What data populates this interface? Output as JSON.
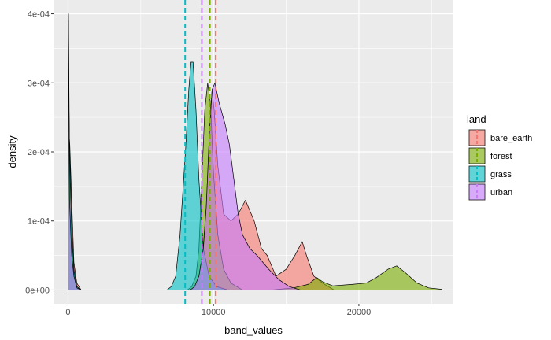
{
  "chart_data": {
    "type": "area",
    "xlabel": "band_values",
    "ylabel": "density",
    "xlim": [
      -1000,
      26500
    ],
    "ylim": [
      -2e-05,
      0.00042
    ],
    "x_ticks": [
      0,
      10000,
      20000
    ],
    "x_tick_labels": [
      "0",
      "10000",
      "20000"
    ],
    "y_ticks": [
      0,
      0.0001,
      0.0002,
      0.0003,
      0.0004
    ],
    "y_tick_labels": [
      "0e+00",
      "1e-04",
      "2e-04",
      "3e-04",
      "4e-04"
    ],
    "grid": true,
    "legend": {
      "title": "land",
      "position": "right"
    },
    "series": [
      {
        "name": "bare_earth",
        "color": "#F8766D",
        "mean_line": 10150,
        "points": [
          [
            0,
            0
          ],
          [
            30,
            0.00024
          ],
          [
            120,
            0.00021
          ],
          [
            250,
            0.00013
          ],
          [
            400,
            4e-05
          ],
          [
            600,
            1e-05
          ],
          [
            900,
            0
          ],
          [
            8500,
            0
          ],
          [
            8900,
            1e-05
          ],
          [
            9200,
            4e-05
          ],
          [
            9500,
            0.00012
          ],
          [
            9750,
            0.00024
          ],
          [
            9900,
            0.00029
          ],
          [
            10050,
            0.00026
          ],
          [
            10300,
            0.00018
          ],
          [
            10700,
            0.00011
          ],
          [
            11200,
            0.0001
          ],
          [
            11700,
            0.00011
          ],
          [
            12200,
            0.00013
          ],
          [
            12800,
            0.0001
          ],
          [
            13300,
            6e-05
          ],
          [
            13700,
            5e-05
          ],
          [
            14300,
            2e-05
          ],
          [
            15000,
            3e-05
          ],
          [
            15600,
            5e-05
          ],
          [
            16100,
            7e-05
          ],
          [
            16400,
            5e-05
          ],
          [
            16900,
            2e-05
          ],
          [
            17500,
            1e-05
          ],
          [
            18300,
            0
          ],
          [
            19000,
            0
          ]
        ]
      },
      {
        "name": "forest",
        "color": "#7CAE00",
        "mean_line": 9750,
        "points": [
          [
            0,
            0
          ],
          [
            30,
            0.0004
          ],
          [
            100,
            0.00019
          ],
          [
            250,
            8e-05
          ],
          [
            400,
            2.5e-05
          ],
          [
            600,
            5e-06
          ],
          [
            900,
            0
          ],
          [
            8200,
            0
          ],
          [
            8500,
            5e-06
          ],
          [
            8800,
            2e-05
          ],
          [
            9000,
            6e-05
          ],
          [
            9200,
            0.00016
          ],
          [
            9400,
            0.00026
          ],
          [
            9600,
            0.0003
          ],
          [
            9800,
            0.00027
          ],
          [
            10000,
            0.00017
          ],
          [
            10300,
            8e-05
          ],
          [
            10700,
            3e-05
          ],
          [
            11200,
            1e-05
          ],
          [
            12000,
            0
          ],
          [
            14000,
            0
          ],
          [
            15500,
            3e-06
          ],
          [
            16500,
            8e-06
          ],
          [
            17100,
            1.8e-05
          ],
          [
            17500,
            1.2e-05
          ],
          [
            18200,
            6e-06
          ],
          [
            19500,
            8e-06
          ],
          [
            20500,
            1e-05
          ],
          [
            21200,
            1.8e-05
          ],
          [
            22000,
            3e-05
          ],
          [
            22600,
            3.5e-05
          ],
          [
            23200,
            2.5e-05
          ],
          [
            24000,
            1e-05
          ],
          [
            24800,
            3e-06
          ],
          [
            25700,
            1e-06
          ],
          [
            25700,
            0
          ]
        ]
      },
      {
        "name": "grass",
        "color": "#00BFC4",
        "mean_line": 8050,
        "points": [
          [
            0,
            0
          ],
          [
            30,
            0.00031
          ],
          [
            100,
            0.00021
          ],
          [
            250,
            9e-05
          ],
          [
            400,
            3e-05
          ],
          [
            600,
            5e-06
          ],
          [
            900,
            0
          ],
          [
            6800,
            0
          ],
          [
            7100,
            5e-06
          ],
          [
            7400,
            2e-05
          ],
          [
            7700,
            8e-05
          ],
          [
            7950,
            0.00016
          ],
          [
            8100,
            0.00021
          ],
          [
            8300,
            0.00029
          ],
          [
            8450,
            0.00033
          ],
          [
            8600,
            0.00033
          ],
          [
            8800,
            0.00026
          ],
          [
            9000,
            0.00016
          ],
          [
            9300,
            6e-05
          ],
          [
            9700,
            2e-05
          ],
          [
            10200,
            5e-06
          ],
          [
            11000,
            0
          ]
        ]
      },
      {
        "name": "urban",
        "color": "#C77CFF",
        "mean_line": 9200,
        "points": [
          [
            0,
            0
          ],
          [
            30,
            0.00039
          ],
          [
            100,
            0.00013
          ],
          [
            250,
            5e-05
          ],
          [
            400,
            2e-05
          ],
          [
            600,
            3e-06
          ],
          [
            900,
            0
          ],
          [
            8400,
            0
          ],
          [
            8700,
            5e-06
          ],
          [
            9000,
            2e-05
          ],
          [
            9300,
            6e-05
          ],
          [
            9500,
            0.00012
          ],
          [
            9700,
            0.00022
          ],
          [
            9900,
            0.00029
          ],
          [
            10100,
            0.0003
          ],
          [
            10400,
            0.00027
          ],
          [
            10800,
            0.00024
          ],
          [
            11100,
            0.00021
          ],
          [
            11400,
            0.00016
          ],
          [
            11700,
            0.00011
          ],
          [
            12000,
            8e-05
          ],
          [
            12500,
            6e-05
          ],
          [
            13000,
            5e-05
          ],
          [
            13400,
            4e-05
          ],
          [
            13800,
            3e-05
          ],
          [
            14500,
            1.5e-05
          ],
          [
            15200,
            5e-06
          ],
          [
            16000,
            0
          ]
        ]
      }
    ]
  }
}
